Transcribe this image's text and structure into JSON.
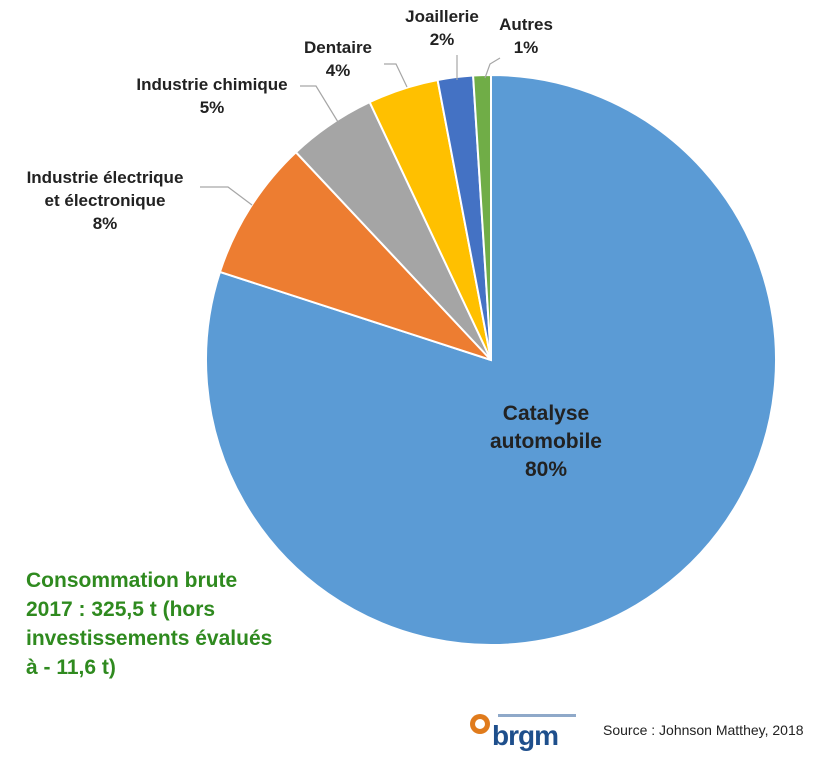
{
  "chart_data": {
    "type": "pie",
    "title": "",
    "start_angle_deg": 0,
    "direction": "clockwise",
    "slices": [
      {
        "lines": [
          "Catalyse",
          "automobile",
          "80%"
        ],
        "value": 80,
        "color": "#5b9bd5"
      },
      {
        "lines": [
          "Industrie électrique",
          "et électronique",
          "8%"
        ],
        "value": 8,
        "color": "#ed7d31"
      },
      {
        "lines": [
          "Industrie chimique",
          "5%"
        ],
        "value": 5,
        "color": "#a5a5a5"
      },
      {
        "lines": [
          "Dentaire",
          "4%"
        ],
        "value": 4,
        "color": "#ffc000"
      },
      {
        "lines": [
          "Joaillerie",
          "2%"
        ],
        "value": 2,
        "color": "#4472c4"
      },
      {
        "lines": [
          "Autres",
          "1%"
        ],
        "value": 1,
        "color": "#70ad47"
      }
    ]
  },
  "note": {
    "lines": [
      "Consommation brute",
      "2017 : 325,5 t (hors",
      "investissements évalués",
      "à - 11,6 t)"
    ]
  },
  "footer": {
    "logo_text": "brgm",
    "source": "Source : Johnson Matthey, 2018"
  }
}
